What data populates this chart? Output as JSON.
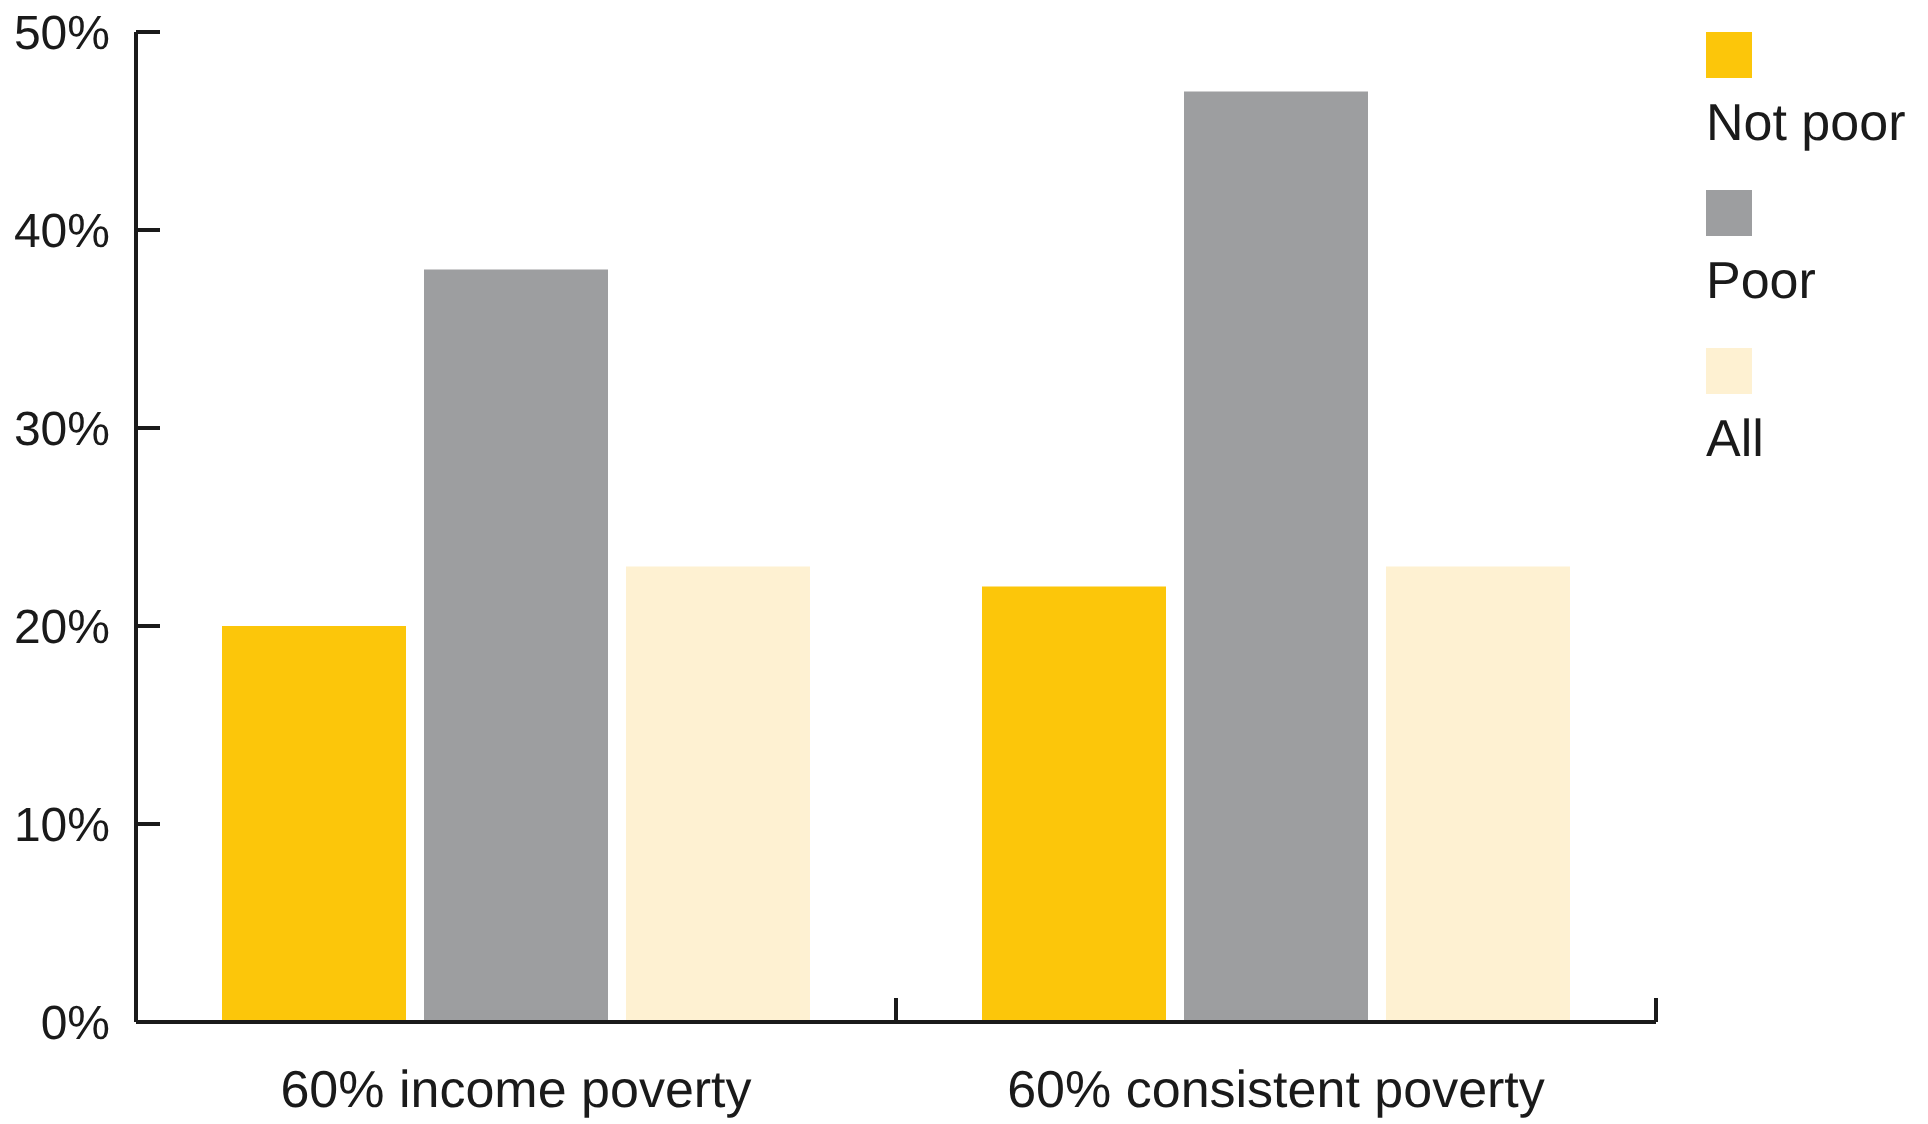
{
  "chart_data": {
    "type": "bar",
    "categories": [
      "60% income poverty",
      "60% consistent poverty"
    ],
    "series": [
      {
        "name": "Not poor",
        "color": "#fcc60a",
        "values": [
          20,
          22
        ]
      },
      {
        "name": "Poor",
        "color": "#9d9ea0",
        "values": [
          38,
          47
        ]
      },
      {
        "name": "All",
        "color": "#fef1d2",
        "values": [
          23,
          23
        ]
      }
    ],
    "ylim": [
      0,
      50
    ],
    "yticks": [
      {
        "value": 0,
        "label": "0%"
      },
      {
        "value": 10,
        "label": "10%"
      },
      {
        "value": 20,
        "label": "20%"
      },
      {
        "value": 30,
        "label": "30%"
      },
      {
        "value": 40,
        "label": "40%"
      },
      {
        "value": 50,
        "label": "50%"
      }
    ],
    "grid": false,
    "legend": "top right"
  }
}
